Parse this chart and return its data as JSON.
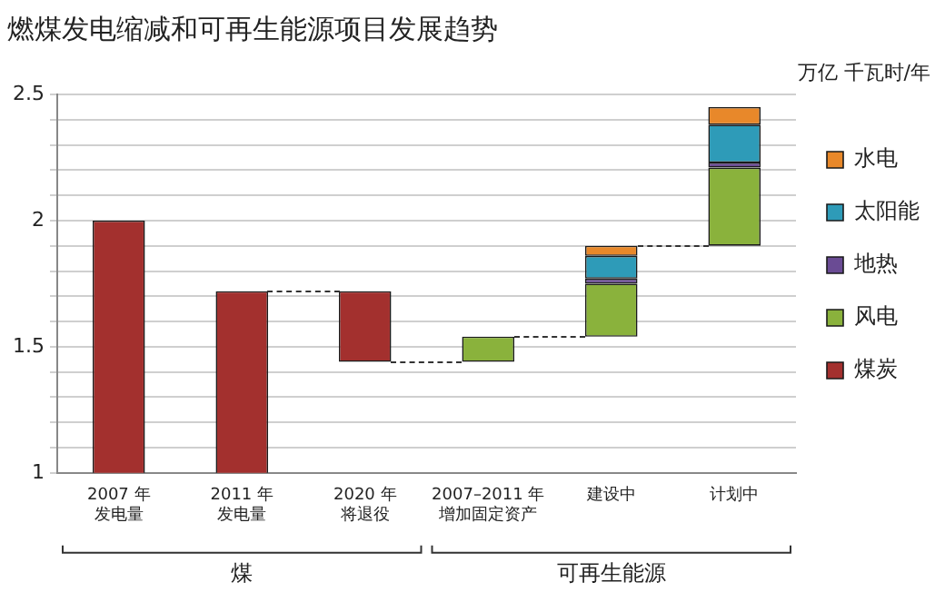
{
  "chart_data": {
    "type": "bar",
    "title": "燃煤发电缩减和可再生能源项目发展趋势",
    "ylabel": "万亿 千瓦时/年",
    "categories": [
      "2007 年发电量",
      "2011 年发电量",
      "2020 年将退役",
      "2007–2011 年增加固定资产",
      "建设中",
      "计划中"
    ],
    "stacked": true,
    "series": [
      {
        "name": "煤炭",
        "color": "#a3302e",
        "values": [
          2.0,
          1.72,
          -0.28,
          null,
          null,
          null
        ],
        "base": [
          null,
          null,
          1.72,
          null,
          null,
          null
        ]
      },
      {
        "name": "风电",
        "color": "#8ab23c",
        "values": [
          null,
          null,
          null,
          0.1,
          0.21,
          0.31
        ],
        "base": [
          null,
          null,
          null,
          1.44,
          1.54,
          1.9
        ]
      },
      {
        "name": "地热",
        "color": "#6a4b94",
        "values": [
          null,
          null,
          null,
          null,
          0.02,
          0.02
        ],
        "base": [
          null,
          null,
          null,
          null,
          1.75,
          2.21
        ]
      },
      {
        "name": "太阳能",
        "color": "#2e9bb8",
        "values": [
          null,
          null,
          null,
          null,
          0.09,
          0.15
        ],
        "base": [
          null,
          null,
          null,
          null,
          1.77,
          2.23
        ]
      },
      {
        "name": "水电",
        "color": "#e8882a",
        "values": [
          null,
          null,
          null,
          null,
          0.04,
          0.07
        ],
        "base": [
          null,
          null,
          null,
          null,
          1.86,
          2.38
        ]
      }
    ],
    "ylim": [
      1,
      2.5
    ],
    "yticks": [
      1,
      {
        "value": 1.1,
        "label": null
      },
      {
        "value": 1.2,
        "label": null
      },
      {
        "value": 1.3,
        "label": null
      },
      {
        "value": 1.4,
        "label": null
      },
      1.5,
      {
        "value": 1.6,
        "label": null
      },
      {
        "value": 1.7,
        "label": null
      },
      {
        "value": 1.8,
        "label": null
      },
      {
        "value": 1.9,
        "label": null
      },
      2,
      {
        "value": 2.1,
        "label": null
      },
      {
        "value": 2.2,
        "label": null
      },
      {
        "value": 2.3,
        "label": null
      },
      {
        "value": 2.4,
        "label": null
      },
      2.5
    ],
    "grid": "y",
    "legend": "right",
    "annotations": [
      "煤",
      "可再生能源"
    ]
  }
}
